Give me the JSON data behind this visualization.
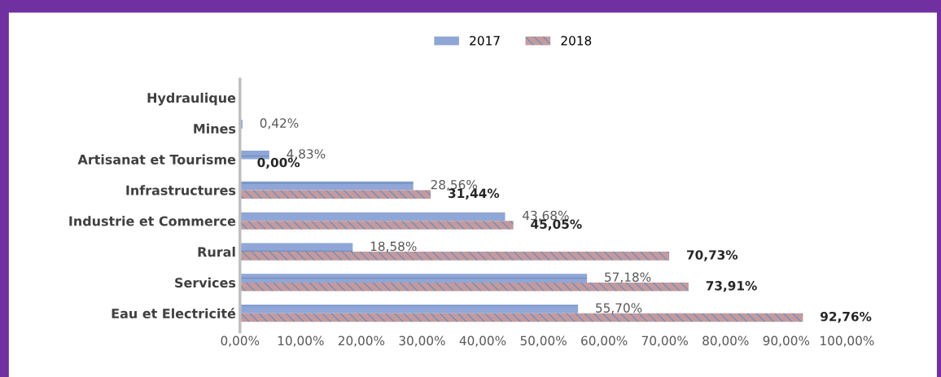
{
  "chart_data": {
    "type": "bar",
    "orientation": "horizontal",
    "categories": [
      "Hydraulique",
      "Mines",
      "Artisanat et Tourisme",
      "Infrastructures",
      "Industrie et Commerce",
      "Rural",
      "Services",
      "Eau et Electricité"
    ],
    "series": [
      {
        "name": "2017",
        "color": "#8fa6d6",
        "values": [
          null,
          0.42,
          4.83,
          28.56,
          43.68,
          18.58,
          57.18,
          55.7
        ],
        "value_labels": [
          null,
          "0,42%",
          "4,83%",
          "28,56%",
          "43,68%",
          "18,58%",
          "57,18%",
          "55,70%"
        ]
      },
      {
        "name": "2018",
        "color": "#c59a9c",
        "values": [
          null,
          null,
          0.0,
          31.44,
          45.05,
          70.73,
          73.91,
          92.76
        ],
        "value_labels": [
          null,
          null,
          "0,00%",
          "31,44%",
          "45,05%",
          "70,73%",
          "73,91%",
          "92,76%"
        ]
      }
    ],
    "xlim": [
      0,
      100
    ],
    "xticks": [
      {
        "value": 0,
        "label": "0,00%"
      },
      {
        "value": 10,
        "label": "10,00%"
      },
      {
        "value": 20,
        "label": "20,00%"
      },
      {
        "value": 30,
        "label": "30,00%"
      },
      {
        "value": 40,
        "label": "40,00%"
      },
      {
        "value": 50,
        "label": "50,00%"
      },
      {
        "value": 60,
        "label": "60,00%"
      },
      {
        "value": 70,
        "label": "70,00%"
      },
      {
        "value": 80,
        "label": "80,00%"
      },
      {
        "value": 90,
        "label": "90,00%"
      },
      {
        "value": 100,
        "label": "100,00%"
      }
    ],
    "grid": false,
    "legend": "top"
  }
}
